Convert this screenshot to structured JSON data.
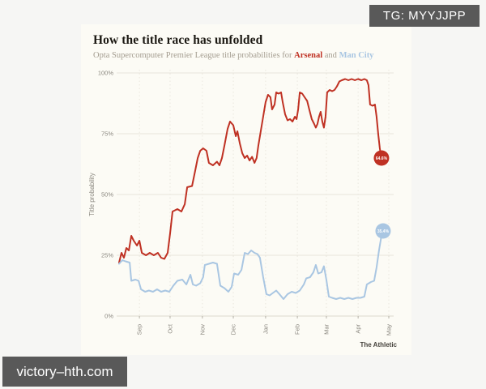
{
  "watermarks": {
    "top_right": "TG: MYYJJPP",
    "bottom_left": "victory–hth.com"
  },
  "card": {
    "title": "How the title race has unfolded",
    "subtitle_prefix": "Opta Supercomputer Premier League title probabilities for ",
    "team1": "Arsenal",
    "subtitle_and": " and ",
    "team2": "Man City",
    "attribution": "The Athletic"
  },
  "chart_data": {
    "type": "line",
    "title": "How the title race has unfolded",
    "subtitle": "Opta Supercomputer Premier League title probabilities for Arsenal and Man City",
    "xlabel": "",
    "ylabel": "Title probability",
    "ylim": [
      0,
      100
    ],
    "grid": true,
    "legend_position": "none",
    "y_ticks": [
      {
        "v": 0,
        "label": "0%"
      },
      {
        "v": 25,
        "label": "25%"
      },
      {
        "v": 50,
        "label": "50%"
      },
      {
        "v": 75,
        "label": "75%"
      },
      {
        "v": 100,
        "label": "100%"
      }
    ],
    "x_ticks": [
      {
        "pos": 0.075,
        "label": "Sep"
      },
      {
        "pos": 0.188,
        "label": "Oct"
      },
      {
        "pos": 0.307,
        "label": "Nov"
      },
      {
        "pos": 0.421,
        "label": "Dec"
      },
      {
        "pos": 0.54,
        "label": "Jan"
      },
      {
        "pos": 0.657,
        "label": "Feb"
      },
      {
        "pos": 0.764,
        "label": "Mar"
      },
      {
        "pos": 0.881,
        "label": "Apr"
      },
      {
        "pos": 0.994,
        "label": "May"
      }
    ],
    "series": [
      {
        "name": "Arsenal",
        "color": "#bf3123",
        "end_label": "64.6%",
        "points": [
          [
            0.0,
            22
          ],
          [
            0.009,
            26
          ],
          [
            0.018,
            24
          ],
          [
            0.027,
            28
          ],
          [
            0.036,
            27
          ],
          [
            0.045,
            33
          ],
          [
            0.054,
            31
          ],
          [
            0.066,
            29
          ],
          [
            0.075,
            31
          ],
          [
            0.084,
            26
          ],
          [
            0.099,
            25
          ],
          [
            0.113,
            26
          ],
          [
            0.128,
            25
          ],
          [
            0.143,
            26
          ],
          [
            0.155,
            24
          ],
          [
            0.167,
            23.5
          ],
          [
            0.179,
            26
          ],
          [
            0.188,
            34
          ],
          [
            0.197,
            43
          ],
          [
            0.215,
            44
          ],
          [
            0.23,
            43
          ],
          [
            0.242,
            46
          ],
          [
            0.251,
            53
          ],
          [
            0.269,
            53.5
          ],
          [
            0.281,
            60
          ],
          [
            0.29,
            65
          ],
          [
            0.299,
            68
          ],
          [
            0.31,
            69
          ],
          [
            0.322,
            68
          ],
          [
            0.331,
            63
          ],
          [
            0.346,
            62
          ],
          [
            0.361,
            63.5
          ],
          [
            0.37,
            62
          ],
          [
            0.379,
            65
          ],
          [
            0.388,
            70
          ],
          [
            0.4,
            77
          ],
          [
            0.409,
            80
          ],
          [
            0.421,
            78.5
          ],
          [
            0.43,
            74
          ],
          [
            0.436,
            76
          ],
          [
            0.445,
            71
          ],
          [
            0.454,
            67
          ],
          [
            0.463,
            65
          ],
          [
            0.472,
            66
          ],
          [
            0.481,
            64
          ],
          [
            0.49,
            65.5
          ],
          [
            0.499,
            63
          ],
          [
            0.507,
            65
          ],
          [
            0.513,
            70
          ],
          [
            0.522,
            76
          ],
          [
            0.531,
            82
          ],
          [
            0.54,
            88
          ],
          [
            0.549,
            91
          ],
          [
            0.558,
            90
          ],
          [
            0.564,
            85
          ],
          [
            0.573,
            87
          ],
          [
            0.579,
            92
          ],
          [
            0.588,
            91.5
          ],
          [
            0.597,
            92
          ],
          [
            0.603,
            88
          ],
          [
            0.612,
            83
          ],
          [
            0.621,
            80.5
          ],
          [
            0.63,
            81
          ],
          [
            0.639,
            80
          ],
          [
            0.648,
            82
          ],
          [
            0.654,
            81
          ],
          [
            0.66,
            85
          ],
          [
            0.666,
            92
          ],
          [
            0.675,
            91.5
          ],
          [
            0.684,
            90
          ],
          [
            0.693,
            88.5
          ],
          [
            0.701,
            85
          ],
          [
            0.71,
            81
          ],
          [
            0.719,
            79
          ],
          [
            0.725,
            77.5
          ],
          [
            0.731,
            79
          ],
          [
            0.737,
            82
          ],
          [
            0.743,
            84
          ],
          [
            0.749,
            80
          ],
          [
            0.755,
            77.5
          ],
          [
            0.761,
            82
          ],
          [
            0.767,
            92
          ],
          [
            0.776,
            93
          ],
          [
            0.785,
            92.5
          ],
          [
            0.794,
            93
          ],
          [
            0.803,
            94.5
          ],
          [
            0.812,
            96.5
          ],
          [
            0.821,
            97
          ],
          [
            0.833,
            97.5
          ],
          [
            0.845,
            97
          ],
          [
            0.857,
            97.5
          ],
          [
            0.869,
            97
          ],
          [
            0.881,
            97.5
          ],
          [
            0.893,
            97
          ],
          [
            0.904,
            97.5
          ],
          [
            0.913,
            97
          ],
          [
            0.919,
            95
          ],
          [
            0.925,
            87
          ],
          [
            0.934,
            86.5
          ],
          [
            0.943,
            87
          ],
          [
            0.949,
            82
          ],
          [
            0.955,
            75
          ],
          [
            0.961,
            69
          ],
          [
            0.967,
            65
          ]
        ]
      },
      {
        "name": "Man City",
        "color": "#a9c6e2",
        "end_label": "35.4%",
        "points": [
          [
            0.0,
            21.5
          ],
          [
            0.012,
            23
          ],
          [
            0.024,
            22.5
          ],
          [
            0.039,
            22
          ],
          [
            0.045,
            14.5
          ],
          [
            0.06,
            15
          ],
          [
            0.072,
            14.5
          ],
          [
            0.081,
            11
          ],
          [
            0.096,
            10
          ],
          [
            0.11,
            10.5
          ],
          [
            0.125,
            10
          ],
          [
            0.14,
            11
          ],
          [
            0.155,
            10
          ],
          [
            0.17,
            10.5
          ],
          [
            0.185,
            10
          ],
          [
            0.2,
            12.5
          ],
          [
            0.215,
            14.5
          ],
          [
            0.233,
            15
          ],
          [
            0.248,
            13
          ],
          [
            0.263,
            17
          ],
          [
            0.272,
            13
          ],
          [
            0.284,
            12.5
          ],
          [
            0.299,
            13.5
          ],
          [
            0.31,
            16
          ],
          [
            0.316,
            21
          ],
          [
            0.331,
            21.5
          ],
          [
            0.346,
            22
          ],
          [
            0.361,
            21.5
          ],
          [
            0.373,
            12.5
          ],
          [
            0.388,
            11.5
          ],
          [
            0.403,
            10
          ],
          [
            0.415,
            12
          ],
          [
            0.424,
            17.5
          ],
          [
            0.439,
            17
          ],
          [
            0.451,
            19
          ],
          [
            0.463,
            26
          ],
          [
            0.475,
            25.5
          ],
          [
            0.487,
            27
          ],
          [
            0.499,
            26
          ],
          [
            0.51,
            25.5
          ],
          [
            0.519,
            24
          ],
          [
            0.531,
            16
          ],
          [
            0.543,
            9
          ],
          [
            0.555,
            8.5
          ],
          [
            0.567,
            9.5
          ],
          [
            0.579,
            10.5
          ],
          [
            0.591,
            9
          ],
          [
            0.606,
            7
          ],
          [
            0.621,
            9
          ],
          [
            0.636,
            10
          ],
          [
            0.651,
            9.5
          ],
          [
            0.666,
            10.5
          ],
          [
            0.681,
            13
          ],
          [
            0.69,
            15.5
          ],
          [
            0.704,
            16
          ],
          [
            0.716,
            18
          ],
          [
            0.725,
            21
          ],
          [
            0.734,
            17.5
          ],
          [
            0.746,
            18
          ],
          [
            0.755,
            20.5
          ],
          [
            0.764,
            15
          ],
          [
            0.773,
            8
          ],
          [
            0.785,
            7.5
          ],
          [
            0.8,
            7
          ],
          [
            0.815,
            7.5
          ],
          [
            0.83,
            7
          ],
          [
            0.845,
            7.5
          ],
          [
            0.86,
            7
          ],
          [
            0.875,
            7.5
          ],
          [
            0.89,
            7.5
          ],
          [
            0.904,
            8
          ],
          [
            0.913,
            13
          ],
          [
            0.928,
            14
          ],
          [
            0.94,
            14.5
          ],
          [
            0.949,
            20
          ],
          [
            0.958,
            27
          ],
          [
            0.967,
            33
          ],
          [
            0.973,
            35
          ]
        ]
      }
    ],
    "colors": {
      "card_bg": "#fcfbf5",
      "page_bg": "#f6f6f4",
      "grid": "#e7e4db",
      "tick_text": "#8a877f",
      "watermark_bg": "#595959"
    }
  }
}
